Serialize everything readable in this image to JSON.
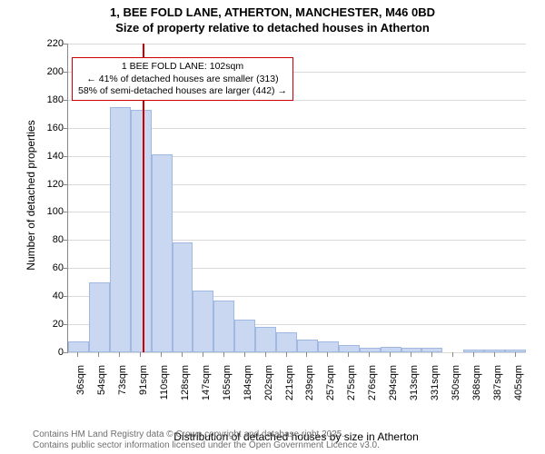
{
  "title_line1": "1, BEE FOLD LANE, ATHERTON, MANCHESTER, M46 0BD",
  "title_line2": "Size of property relative to detached houses in Atherton",
  "y_axis_title": "Number of detached properties",
  "x_axis_title": "Distribution of detached houses by size in Atherton",
  "credit_line1": "Contains HM Land Registry data © Crown copyright and database right 2025.",
  "credit_line2": "Contains public sector information licensed under the Open Government Licence v3.0.",
  "chart": {
    "type": "histogram",
    "ylim": [
      0,
      220
    ],
    "ytick_step": 20,
    "grid_color": "#d9d9d9",
    "axis_color": "#888888",
    "background_color": "#ffffff",
    "bar_fill": "#c9d8f0",
    "bar_border": "#9fb9e3",
    "bar_width_ratio": 1.0,
    "categories": [
      "36sqm",
      "54sqm",
      "73sqm",
      "91sqm",
      "110sqm",
      "128sqm",
      "147sqm",
      "165sqm",
      "184sqm",
      "202sqm",
      "221sqm",
      "239sqm",
      "257sqm",
      "275sqm",
      "276sqm",
      "294sqm",
      "313sqm",
      "331sqm",
      "350sqm",
      "368sqm",
      "387sqm",
      "405sqm"
    ],
    "values": [
      8,
      50,
      175,
      173,
      141,
      78,
      44,
      37,
      23,
      18,
      14,
      9,
      8,
      5,
      3,
      4,
      3,
      3,
      0,
      2,
      2,
      2
    ],
    "title_fontsize": 13,
    "label_fontsize": 12,
    "tick_fontsize": 11
  },
  "marker": {
    "value_sqm": 102,
    "category_lo_index": 3,
    "category_lo_sqm": 91,
    "category_hi_sqm": 110,
    "line_color": "#cc0000",
    "line_width": 2
  },
  "callout": {
    "border_color": "#cc0000",
    "line1": "1 BEE FOLD LANE: 102sqm",
    "line2": "← 41% of detached houses are smaller (313)",
    "line3": "58% of semi-detached houses are larger (442) →"
  }
}
